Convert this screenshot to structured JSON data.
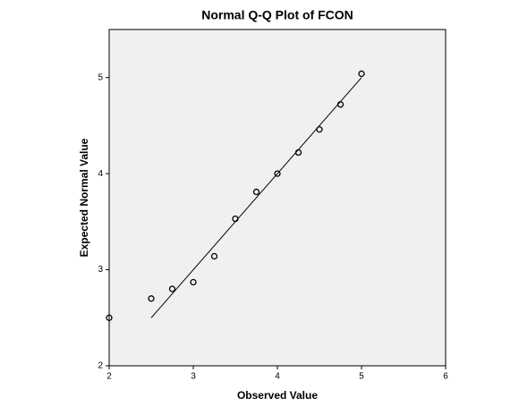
{
  "chart_data": {
    "type": "scatter",
    "title": "Normal Q-Q Plot of FCON",
    "x_label": "Observed Value",
    "y_label": "Expected Normal Value",
    "x": [
      2,
      2.5,
      2.75,
      3,
      3.25,
      3.5,
      3.75,
      4,
      4.25,
      4.5,
      4.75,
      5
    ],
    "values": [
      2.5,
      2.7,
      2.8,
      2.87,
      3.14,
      3.53,
      3.81,
      4.0,
      4.22,
      4.46,
      4.72,
      5.04
    ],
    "reference_line": {
      "x": [
        2.5,
        5
      ],
      "y": [
        2.5,
        5
      ]
    },
    "color": "#000000",
    "background": "#f0f0f0",
    "xlim": [
      2,
      6
    ],
    "xticks": [
      2,
      3,
      4,
      5,
      6
    ],
    "ylim": [
      2,
      5.5
    ],
    "yticks": [
      2,
      3,
      4,
      5
    ]
  }
}
